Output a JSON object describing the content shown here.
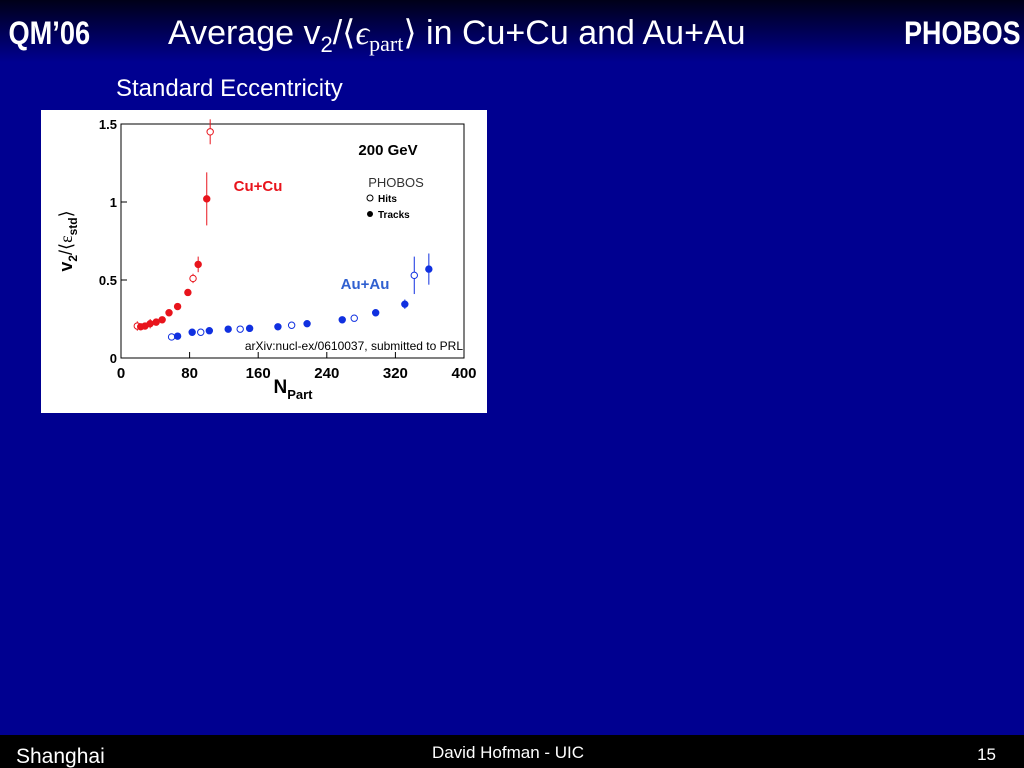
{
  "slide": {
    "left_tag": "QM’06",
    "right_tag": "PHOBOS",
    "title_parts": [
      "Average v",
      "2",
      "/⟨",
      "ϵ",
      "part",
      "⟩ in Cu+Cu and Au+Au"
    ],
    "subtitle": "Standard Eccentricity",
    "footer_left": "Shanghai",
    "footer_center": "David Hofman - UIC",
    "page_number": "15"
  },
  "chart_data": {
    "type": "scatter",
    "energy_label": "200 GeV",
    "legend_title": "PHOBOS",
    "note": "arXiv:nucl-ex/0610037, submitted to PRL",
    "ylabel_parts": [
      "v",
      "2",
      "/⟨",
      "ε",
      "std",
      "⟩"
    ],
    "xlabel_parts": [
      "N",
      "Part"
    ],
    "xlim": [
      0,
      400
    ],
    "xticks": [
      0,
      80,
      160,
      240,
      320,
      400
    ],
    "ylim": [
      0,
      1.5
    ],
    "yticks": [
      0,
      0.5,
      1,
      1.5
    ],
    "series": [
      {
        "name": "Hits",
        "group": "Cu+Cu",
        "filled": false,
        "color": "#e8141c",
        "x": [
          19,
          84,
          104
        ],
        "values": [
          0.205,
          0.51,
          1.45
        ],
        "errors": [
          0.03,
          0.03,
          0.08
        ]
      },
      {
        "name": "Tracks",
        "group": "Cu+Cu",
        "filled": true,
        "color": "#e8141c",
        "x": [
          23,
          28,
          34,
          41,
          48,
          56,
          66,
          78,
          90,
          100
        ],
        "values": [
          0.2,
          0.205,
          0.22,
          0.23,
          0.245,
          0.29,
          0.33,
          0.42,
          0.6,
          1.02
        ],
        "errors": [
          null,
          null,
          0.03,
          null,
          null,
          null,
          null,
          null,
          0.05,
          0.17
        ]
      },
      {
        "name": "Hits",
        "group": "Au+Au",
        "filled": false,
        "color": "#1030e0",
        "x": [
          59,
          93,
          139,
          199,
          272,
          342
        ],
        "values": [
          0.135,
          0.165,
          0.185,
          0.21,
          0.255,
          0.53
        ],
        "errors": [
          null,
          null,
          null,
          null,
          null,
          0.12
        ]
      },
      {
        "name": "Tracks",
        "group": "Au+Au",
        "filled": true,
        "color": "#1030e0",
        "x": [
          66,
          83,
          103,
          125,
          150,
          183,
          217,
          258,
          297,
          331,
          359
        ],
        "values": [
          0.14,
          0.165,
          0.175,
          0.185,
          0.19,
          0.2,
          0.22,
          0.245,
          0.29,
          0.345,
          0.57
        ],
        "errors": [
          null,
          null,
          null,
          null,
          null,
          null,
          null,
          null,
          null,
          0.03,
          0.1
        ]
      }
    ]
  }
}
